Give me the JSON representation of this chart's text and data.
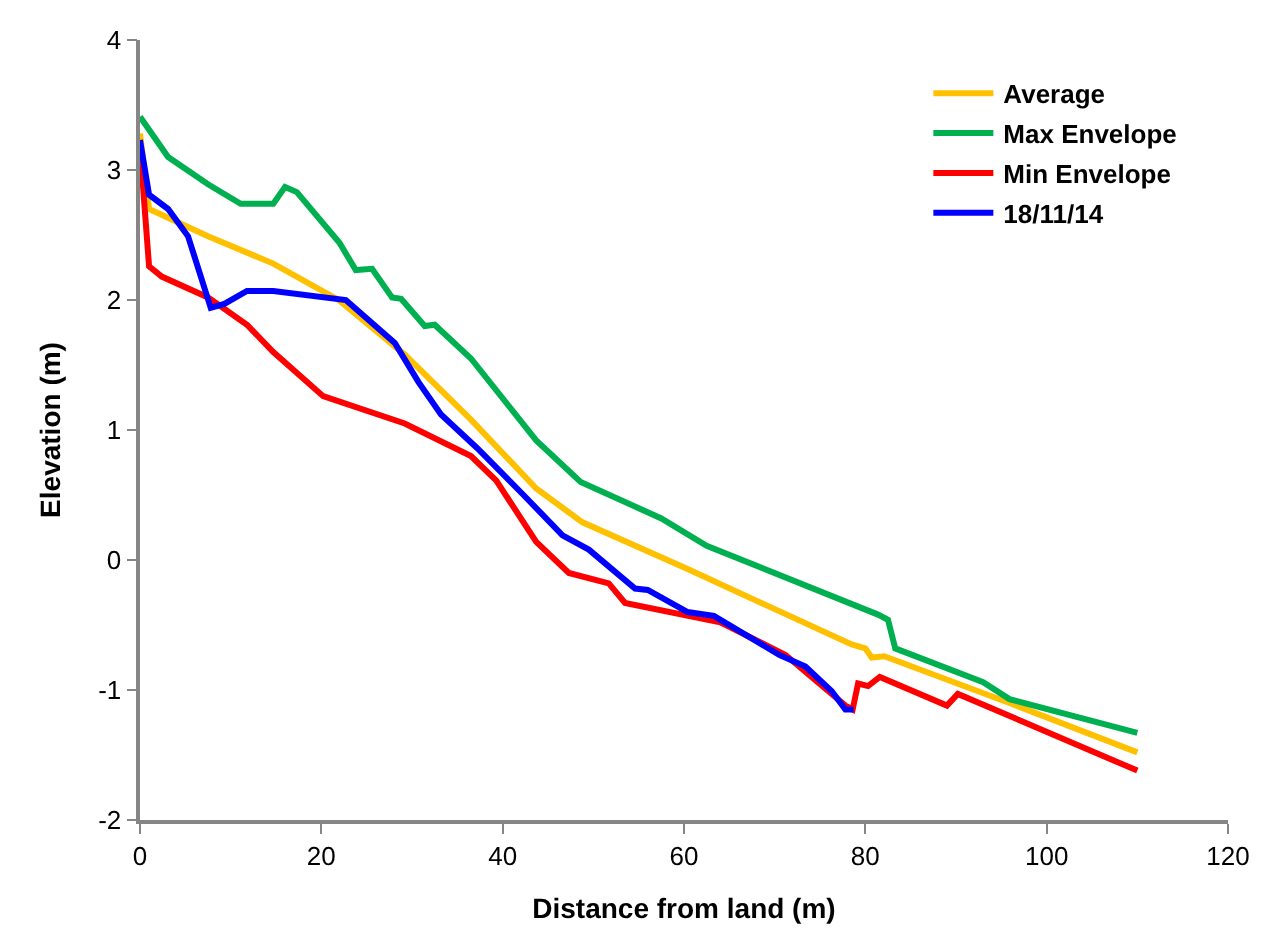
{
  "chart_data": {
    "type": "line",
    "xlabel": "Distance from land (m)",
    "ylabel": "Elevation (m)",
    "xlim": [
      0,
      120
    ],
    "xticks": [
      0,
      20,
      40,
      60,
      80,
      100,
      120
    ],
    "ylim": [
      -2,
      4
    ],
    "yticks": [
      -2,
      -1,
      0,
      1,
      2,
      3,
      4
    ],
    "legend": "top right",
    "marker": "none",
    "line_style": "solid",
    "series": [
      {
        "name": "Average",
        "color": "#ffc000",
        "x": [
          0,
          1.0,
          7.5,
          14.7,
          21.9,
          29.2,
          36.5,
          43.7,
          48.8,
          60.4,
          78.5,
          80,
          80.7,
          82.1,
          95.9,
          110
        ],
        "values": [
          3.28,
          2.7,
          2.49,
          2.28,
          2.0,
          1.58,
          1.08,
          0.55,
          0.29,
          -0.07,
          -0.65,
          -0.68,
          -0.75,
          -0.74,
          -1.1,
          -1.48
        ]
      },
      {
        "name": "Max Envelope",
        "color": "#00b050",
        "x": [
          0,
          3.1,
          7.5,
          11.1,
          14.7,
          16.0,
          17.3,
          22.0,
          23.8,
          25.6,
          27.8,
          28.8,
          31.4,
          32.5,
          36.5,
          43.7,
          48.6,
          57.5,
          62.5,
          81.4,
          82.5,
          83.3,
          93.0,
          95.9,
          110
        ],
        "values": [
          3.41,
          3.1,
          2.89,
          2.74,
          2.74,
          2.87,
          2.83,
          2.44,
          2.23,
          2.24,
          2.02,
          2.01,
          1.8,
          1.81,
          1.55,
          0.92,
          0.6,
          0.32,
          0.11,
          -0.42,
          -0.46,
          -0.68,
          -0.94,
          -1.07,
          -1.33
        ]
      },
      {
        "name": "Min Envelope",
        "color": "#ff0000",
        "x": [
          0,
          1.0,
          2.4,
          7.5,
          11.8,
          14.7,
          20.2,
          29.2,
          36.5,
          39.3,
          43.7,
          47.3,
          51.7,
          53.5,
          64.0,
          71.2,
          77.8,
          78.6,
          79.2,
          80.3,
          81.6,
          89.0,
          90.2,
          110
        ],
        "values": [
          3.18,
          2.26,
          2.18,
          2.02,
          1.81,
          1.6,
          1.26,
          1.05,
          0.8,
          0.61,
          0.14,
          -0.1,
          -0.18,
          -0.33,
          -0.48,
          -0.73,
          -1.12,
          -1.15,
          -0.95,
          -0.97,
          -0.9,
          -1.12,
          -1.03,
          -1.62
        ]
      },
      {
        "name": "18/11/14",
        "color": "#0000ff",
        "x": [
          0,
          1.0,
          3.1,
          5.3,
          7.8,
          9.3,
          11.8,
          14.7,
          22.7,
          28.1,
          30.7,
          33.2,
          37.2,
          42.3,
          46.6,
          49.5,
          54.6,
          56.0,
          60.4,
          63.3,
          70.5,
          73.4,
          76.3,
          77.8,
          78.7
        ],
        "values": [
          3.23,
          2.81,
          2.7,
          2.49,
          1.94,
          1.97,
          2.07,
          2.07,
          2.0,
          1.67,
          1.37,
          1.12,
          0.86,
          0.5,
          0.19,
          0.08,
          -0.22,
          -0.23,
          -0.4,
          -0.43,
          -0.73,
          -0.82,
          -1.01,
          -1.15,
          -1.15
        ]
      }
    ]
  }
}
